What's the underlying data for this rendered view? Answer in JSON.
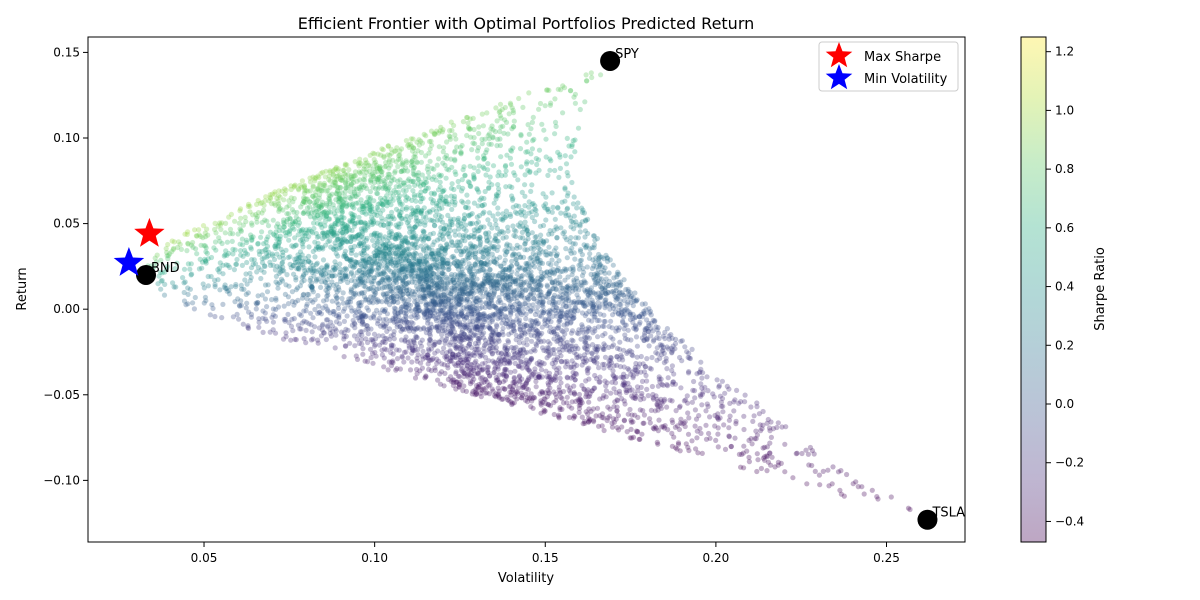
{
  "chart_data": {
    "type": "scatter",
    "title": "Efficient Frontier with Optimal Portfolios Predicted Return",
    "xlabel": "Volatility",
    "ylabel": "Return",
    "xlim": [
      0.016,
      0.273
    ],
    "ylim": [
      -0.136,
      0.159
    ],
    "x_ticks": [
      0.05,
      0.1,
      0.15,
      0.2,
      0.25
    ],
    "x_tick_labels": [
      "0.05",
      "0.10",
      "0.15",
      "0.20",
      "0.25"
    ],
    "y_ticks": [
      0.15,
      0.1,
      0.05,
      0.0,
      -0.05,
      -0.1
    ],
    "y_tick_labels": [
      "0.15",
      "0.10",
      "0.05",
      "0.00",
      "−0.05",
      "−0.10"
    ],
    "colorbar": {
      "label": "Sharpe Ratio",
      "range": [
        -0.47,
        1.25
      ],
      "ticks": [
        1.2,
        1.0,
        0.8,
        0.6,
        0.4,
        0.2,
        0.0,
        -0.2,
        -0.4
      ],
      "tick_labels": [
        "1.2",
        "1.0",
        "0.8",
        "0.6",
        "0.4",
        "0.2",
        "0.0",
        "−0.2",
        "−0.4"
      ],
      "colormap": "viridis"
    },
    "scatter_cloud": {
      "description_points": 10000,
      "alpha": 0.3,
      "color_by": "Sharpe Ratio"
    },
    "assets": [
      {
        "name": "SPY",
        "volatility": 0.169,
        "return": 0.145
      },
      {
        "name": "BND",
        "volatility": 0.033,
        "return": 0.02
      },
      {
        "name": "TSLA",
        "volatility": 0.262,
        "return": -0.123
      }
    ],
    "optimal_portfolios": [
      {
        "name": "Max Sharpe",
        "volatility": 0.034,
        "return": 0.044,
        "color": "#ff0000",
        "marker": "star"
      },
      {
        "name": "Min Volatility",
        "volatility": 0.028,
        "return": 0.027,
        "color": "#0000ff",
        "marker": "star"
      }
    ],
    "legend": {
      "position": "top-right",
      "entries": [
        "Max Sharpe",
        "Min Volatility"
      ]
    }
  }
}
